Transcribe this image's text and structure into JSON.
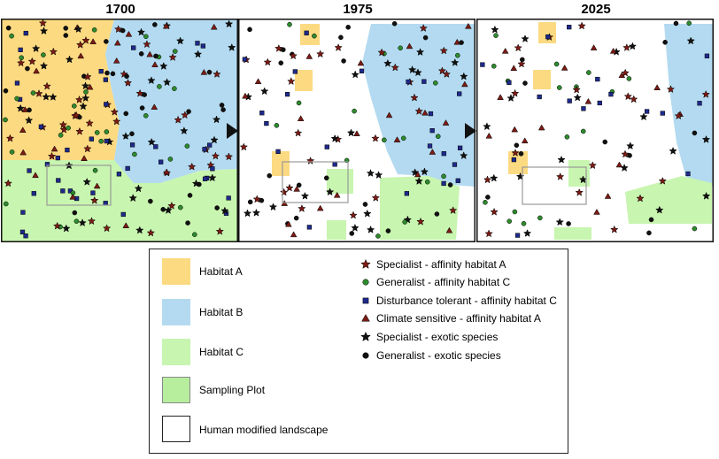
{
  "panels": [
    {
      "year": "1700"
    },
    {
      "year": "1975"
    },
    {
      "year": "2025"
    }
  ],
  "legend": {
    "habitats": [
      {
        "label": "Habitat A",
        "color": "#FCDA82"
      },
      {
        "label": "Habitat B",
        "color": "#B3DAF0"
      },
      {
        "label": "Habitat C",
        "color": "#C8F5B0"
      },
      {
        "label": "Sampling Plot",
        "color": "#B7EE9E"
      },
      {
        "label": "Human modified landscape",
        "color": "#FFFFFF"
      }
    ],
    "species": [
      {
        "label": "Specialist - affinity habitat A",
        "shape": "star",
        "color": "#7B1B14"
      },
      {
        "label": "Generalist - affinity habitat C",
        "shape": "circle",
        "color": "#2E8B2E"
      },
      {
        "label": "Disturbance tolerant - affinity habitat C",
        "shape": "square",
        "color": "#1E2A8C"
      },
      {
        "label": "Climate sensitive - affinity habitat A",
        "shape": "triangle",
        "color": "#7B1B14"
      },
      {
        "label": "Specialist - exotic species",
        "shape": "star",
        "color": "#111111"
      },
      {
        "label": "Generalist - exotic species",
        "shape": "circle",
        "color": "#111111"
      }
    ]
  }
}
